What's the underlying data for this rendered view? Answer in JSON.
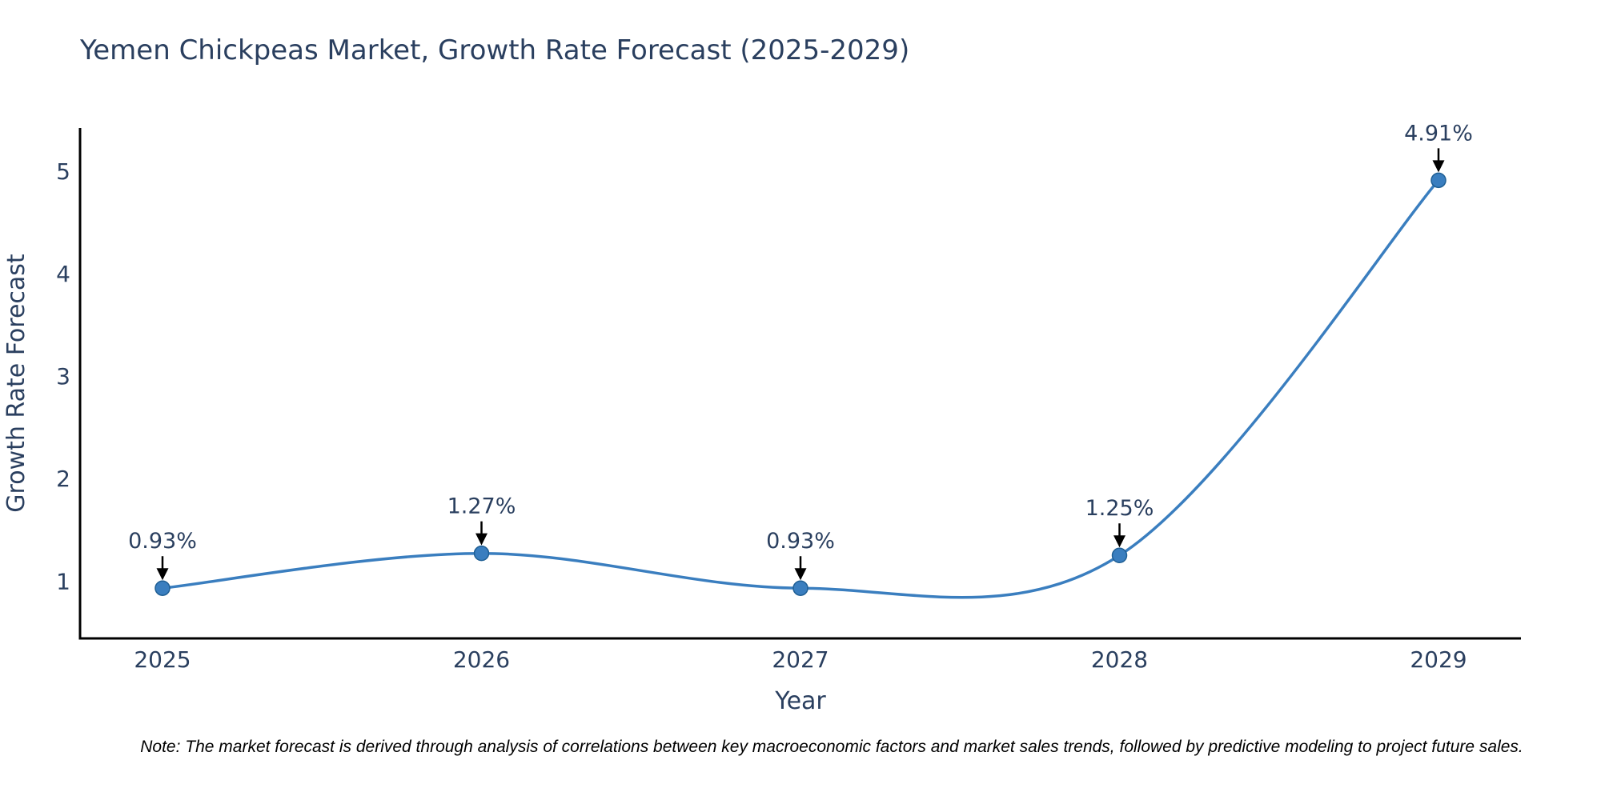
{
  "title": "Yemen Chickpeas Market, Growth Rate Forecast (2025-2029)",
  "note": "Note: The market forecast is derived through analysis of correlations between key macroeconomic factors and market sales trends, followed by predictive modeling to project future sales.",
  "chart_data": {
    "type": "line",
    "title": "Yemen Chickpeas Market, Growth Rate Forecast (2025-2029)",
    "x": [
      "2025",
      "2026",
      "2027",
      "2028",
      "2029"
    ],
    "values": [
      0.93,
      1.27,
      0.93,
      1.25,
      4.91
    ],
    "point_labels": [
      "0.93%",
      "1.27%",
      "0.93%",
      "1.25%",
      "4.91%"
    ],
    "xlabel": "Year",
    "ylabel": "Growth Rate Forecast",
    "yticks": [
      1,
      2,
      3,
      4,
      5
    ],
    "ylim": [
      0.44,
      5.42
    ],
    "line_shape": "spline",
    "grid": false,
    "legend": false,
    "colors": {
      "line": "#3a7ebf",
      "marker_fill": "#3a7ebf",
      "marker_edge": "#1f5f94",
      "axis_line": "#000000",
      "text": "#2a3f5f",
      "annotation_arrow": "#000000",
      "background": "#ffffff"
    }
  }
}
